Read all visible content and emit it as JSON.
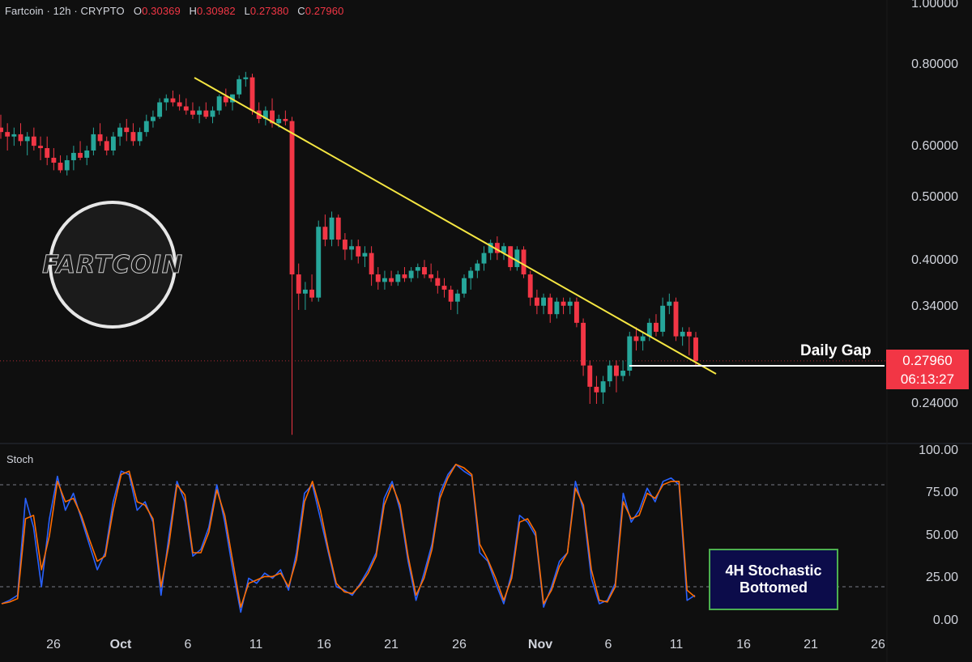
{
  "header": {
    "symbol": "Fartcoin · 12h · CRYPTO",
    "o_label": "O",
    "o_value": "0.30369",
    "h_label": "H",
    "h_value": "0.30982",
    "l_label": "L",
    "l_value": "0.27380",
    "c_label": "C",
    "c_value": "0.27960"
  },
  "price_axis": [
    "1.00000",
    "0.80000",
    "0.60000",
    "0.50000",
    "0.40000",
    "0.34000",
    "0.24000"
  ],
  "stoch_axis": [
    "100.00",
    "75.00",
    "50.00",
    "25.00",
    "0.00"
  ],
  "x_axis": [
    "26",
    "Oct",
    "6",
    "11",
    "16",
    "21",
    "26",
    "Nov",
    "6",
    "11",
    "16",
    "21",
    "26"
  ],
  "stoch_title": "Stoch",
  "current_price": {
    "price": "0.27960",
    "countdown": "06:13:27"
  },
  "annotations": {
    "daily_gap": "Daily Gap",
    "stoch_line1": "4H Stochastic",
    "stoch_line2": "Bottomed"
  },
  "logo_text": "FARTCOIN",
  "colors": {
    "up": "#26a69a",
    "down": "#f23645",
    "trendline": "#f5e642",
    "stoch_k": "#2962ff",
    "stoch_d": "#ff6d00",
    "box_border": "#4caf50",
    "box_fill": "#0c0c4a"
  },
  "chart_data": [
    {
      "type": "candlestick",
      "title": "Fartcoin · 12h · CRYPTO",
      "scale": "log",
      "ylim": [
        0.215,
        1.0
      ],
      "y_ticks": [
        1.0,
        0.8,
        0.6,
        0.5,
        0.4,
        0.34,
        0.24
      ],
      "x_ticks": [
        "26",
        "Oct",
        "6",
        "11",
        "16",
        "21",
        "26",
        "Nov",
        "6",
        "11",
        "16",
        "21",
        "26"
      ],
      "ohlc": [
        [
          0.64,
          0.67,
          0.615,
          0.63
        ],
        [
          0.63,
          0.65,
          0.59,
          0.62
        ],
        [
          0.62,
          0.64,
          0.6,
          0.625
        ],
        [
          0.625,
          0.65,
          0.6,
          0.61
        ],
        [
          0.61,
          0.63,
          0.58,
          0.62
        ],
        [
          0.62,
          0.64,
          0.59,
          0.6
        ],
        [
          0.6,
          0.62,
          0.57,
          0.595
        ],
        [
          0.595,
          0.62,
          0.56,
          0.575
        ],
        [
          0.575,
          0.595,
          0.55,
          0.565
        ],
        [
          0.565,
          0.58,
          0.545,
          0.55
        ],
        [
          0.55,
          0.58,
          0.54,
          0.57
        ],
        [
          0.57,
          0.6,
          0.55,
          0.585
        ],
        [
          0.585,
          0.61,
          0.57,
          0.575
        ],
        [
          0.575,
          0.6,
          0.56,
          0.59
        ],
        [
          0.59,
          0.64,
          0.58,
          0.625
        ],
        [
          0.625,
          0.65,
          0.6,
          0.61
        ],
        [
          0.61,
          0.62,
          0.58,
          0.59
        ],
        [
          0.59,
          0.63,
          0.58,
          0.62
        ],
        [
          0.62,
          0.65,
          0.6,
          0.64
        ],
        [
          0.64,
          0.66,
          0.61,
          0.63
        ],
        [
          0.63,
          0.65,
          0.6,
          0.61
        ],
        [
          0.61,
          0.64,
          0.6,
          0.63
        ],
        [
          0.63,
          0.67,
          0.62,
          0.655
        ],
        [
          0.655,
          0.68,
          0.64,
          0.665
        ],
        [
          0.665,
          0.71,
          0.66,
          0.7
        ],
        [
          0.7,
          0.72,
          0.68,
          0.71
        ],
        [
          0.71,
          0.73,
          0.69,
          0.7
        ],
        [
          0.7,
          0.72,
          0.68,
          0.69
        ],
        [
          0.69,
          0.71,
          0.67,
          0.68
        ],
        [
          0.68,
          0.7,
          0.66,
          0.67
        ],
        [
          0.67,
          0.69,
          0.65,
          0.68
        ],
        [
          0.68,
          0.7,
          0.66,
          0.665
        ],
        [
          0.665,
          0.69,
          0.65,
          0.68
        ],
        [
          0.68,
          0.72,
          0.67,
          0.715
        ],
        [
          0.715,
          0.735,
          0.69,
          0.7
        ],
        [
          0.7,
          0.72,
          0.68,
          0.72
        ],
        [
          0.72,
          0.77,
          0.71,
          0.76
        ],
        [
          0.76,
          0.78,
          0.74,
          0.765
        ],
        [
          0.765,
          0.775,
          0.67,
          0.68
        ],
        [
          0.68,
          0.7,
          0.65,
          0.66
        ],
        [
          0.66,
          0.69,
          0.645,
          0.68
        ],
        [
          0.68,
          0.71,
          0.64,
          0.65
        ],
        [
          0.65,
          0.67,
          0.64,
          0.66
        ],
        [
          0.66,
          0.68,
          0.645,
          0.655
        ],
        [
          0.655,
          0.665,
          0.215,
          0.38
        ],
        [
          0.38,
          0.395,
          0.335,
          0.355
        ],
        [
          0.355,
          0.37,
          0.335,
          0.36
        ],
        [
          0.36,
          0.38,
          0.345,
          0.35
        ],
        [
          0.35,
          0.46,
          0.345,
          0.45
        ],
        [
          0.45,
          0.47,
          0.42,
          0.43
        ],
        [
          0.43,
          0.475,
          0.42,
          0.465
        ],
        [
          0.465,
          0.47,
          0.42,
          0.43
        ],
        [
          0.43,
          0.44,
          0.4,
          0.415
        ],
        [
          0.415,
          0.43,
          0.4,
          0.42
        ],
        [
          0.42,
          0.43,
          0.395,
          0.405
        ],
        [
          0.405,
          0.42,
          0.39,
          0.41
        ],
        [
          0.41,
          0.42,
          0.365,
          0.38
        ],
        [
          0.38,
          0.39,
          0.36,
          0.37
        ],
        [
          0.37,
          0.385,
          0.36,
          0.375
        ],
        [
          0.375,
          0.385,
          0.365,
          0.37
        ],
        [
          0.37,
          0.385,
          0.365,
          0.38
        ],
        [
          0.38,
          0.39,
          0.37,
          0.375
        ],
        [
          0.375,
          0.39,
          0.37,
          0.385
        ],
        [
          0.385,
          0.395,
          0.375,
          0.39
        ],
        [
          0.39,
          0.4,
          0.375,
          0.38
        ],
        [
          0.38,
          0.395,
          0.37,
          0.375
        ],
        [
          0.375,
          0.385,
          0.355,
          0.365
        ],
        [
          0.365,
          0.375,
          0.35,
          0.36
        ],
        [
          0.36,
          0.365,
          0.335,
          0.345
        ],
        [
          0.345,
          0.36,
          0.33,
          0.355
        ],
        [
          0.355,
          0.38,
          0.35,
          0.375
        ],
        [
          0.375,
          0.39,
          0.36,
          0.385
        ],
        [
          0.385,
          0.4,
          0.375,
          0.395
        ],
        [
          0.395,
          0.42,
          0.385,
          0.41
        ],
        [
          0.41,
          0.43,
          0.4,
          0.425
        ],
        [
          0.425,
          0.435,
          0.4,
          0.41
        ],
        [
          0.41,
          0.425,
          0.4,
          0.42
        ],
        [
          0.42,
          0.42,
          0.385,
          0.39
        ],
        [
          0.39,
          0.42,
          0.385,
          0.415
        ],
        [
          0.415,
          0.42,
          0.375,
          0.38
        ],
        [
          0.38,
          0.385,
          0.34,
          0.35
        ],
        [
          0.35,
          0.36,
          0.33,
          0.34
        ],
        [
          0.34,
          0.355,
          0.33,
          0.35
        ],
        [
          0.35,
          0.355,
          0.32,
          0.33
        ],
        [
          0.33,
          0.35,
          0.325,
          0.345
        ],
        [
          0.345,
          0.35,
          0.33,
          0.34
        ],
        [
          0.34,
          0.35,
          0.33,
          0.345
        ],
        [
          0.345,
          0.35,
          0.315,
          0.32
        ],
        [
          0.32,
          0.325,
          0.265,
          0.275
        ],
        [
          0.275,
          0.28,
          0.24,
          0.255
        ],
        [
          0.255,
          0.265,
          0.24,
          0.25
        ],
        [
          0.25,
          0.265,
          0.24,
          0.26
        ],
        [
          0.26,
          0.28,
          0.255,
          0.275
        ],
        [
          0.275,
          0.28,
          0.25,
          0.265
        ],
        [
          0.265,
          0.28,
          0.26,
          0.27
        ],
        [
          0.27,
          0.31,
          0.265,
          0.305
        ],
        [
          0.305,
          0.315,
          0.29,
          0.3
        ],
        [
          0.3,
          0.31,
          0.29,
          0.305
        ],
        [
          0.305,
          0.325,
          0.3,
          0.32
        ],
        [
          0.32,
          0.33,
          0.305,
          0.31
        ],
        [
          0.31,
          0.35,
          0.305,
          0.34
        ],
        [
          0.34,
          0.355,
          0.33,
          0.345
        ],
        [
          0.345,
          0.35,
          0.3,
          0.305
        ],
        [
          0.305,
          0.315,
          0.295,
          0.31
        ],
        [
          0.31,
          0.315,
          0.285,
          0.305
        ],
        [
          0.30369,
          0.30982,
          0.2738,
          0.2796
        ]
      ],
      "trendline_label": "",
      "support_line": {
        "price": 0.28,
        "label": "Daily Gap"
      },
      "last_price": 0.2796
    },
    {
      "type": "line",
      "title": "Stoch",
      "ylim": [
        0,
        100
      ],
      "y_ticks": [
        100,
        75,
        50,
        25,
        0
      ],
      "bands": [
        80,
        20
      ],
      "series": [
        {
          "name": "",
          "color": "#2962ff",
          "values": [
            10,
            12,
            15,
            72,
            55,
            20,
            60,
            85,
            65,
            75,
            60,
            45,
            30,
            40,
            70,
            88,
            86,
            65,
            70,
            58,
            15,
            50,
            82,
            70,
            38,
            42,
            55,
            80,
            58,
            30,
            5,
            25,
            22,
            28,
            25,
            30,
            18,
            40,
            75,
            80,
            60,
            40,
            20,
            18,
            15,
            22,
            30,
            40,
            72,
            82,
            65,
            35,
            12,
            28,
            45,
            75,
            86,
            92,
            88,
            85,
            40,
            35,
            22,
            10,
            28,
            62,
            58,
            50,
            8,
            20,
            35,
            40,
            82,
            65,
            25,
            10,
            12,
            22,
            75,
            58,
            65,
            78,
            70,
            82,
            84,
            80,
            12,
            15
          ]
        },
        {
          "name": "",
          "color": "#ff6d00",
          "values": [
            10,
            11,
            13,
            60,
            62,
            30,
            50,
            82,
            70,
            72,
            62,
            48,
            35,
            38,
            65,
            86,
            88,
            70,
            68,
            60,
            20,
            45,
            80,
            74,
            40,
            40,
            52,
            77,
            62,
            35,
            8,
            22,
            24,
            26,
            26,
            28,
            20,
            36,
            70,
            82,
            65,
            42,
            22,
            17,
            16,
            21,
            28,
            38,
            68,
            80,
            68,
            38,
            15,
            25,
            42,
            72,
            84,
            92,
            90,
            86,
            45,
            36,
            25,
            12,
            25,
            58,
            60,
            52,
            10,
            18,
            32,
            40,
            78,
            68,
            30,
            12,
            11,
            20,
            70,
            60,
            62,
            75,
            72,
            80,
            82,
            82,
            18,
            14
          ]
        }
      ]
    }
  ]
}
